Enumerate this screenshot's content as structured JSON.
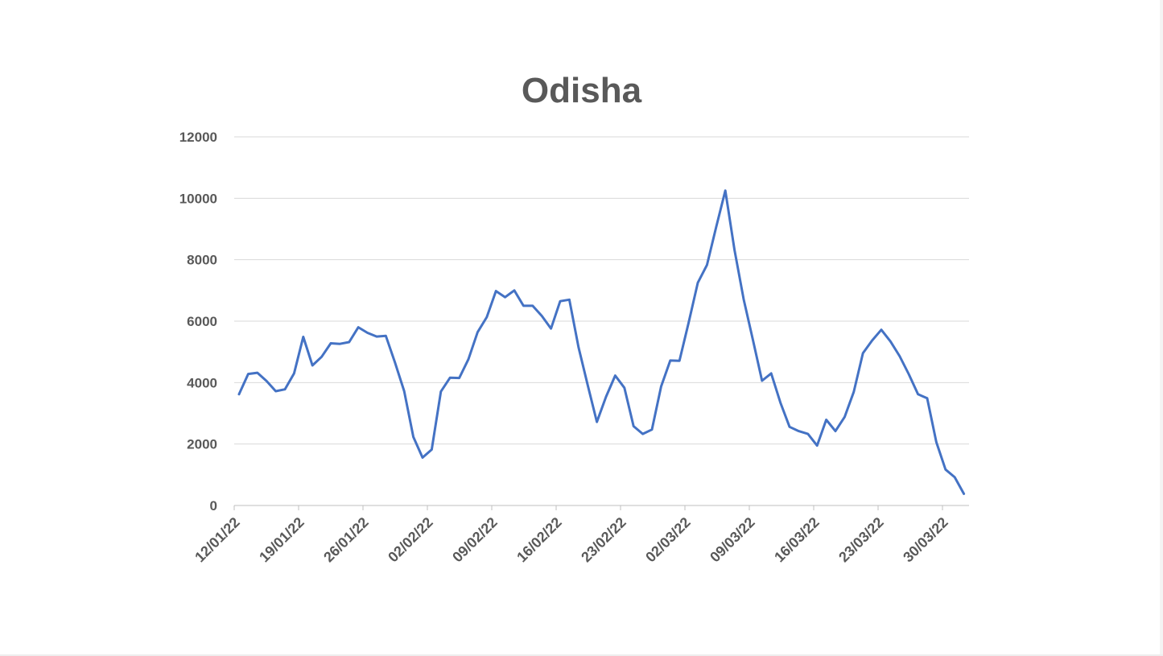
{
  "chart_data": {
    "type": "line",
    "title": "Odisha",
    "xlabel": "",
    "ylabel": "",
    "ylim": [
      0,
      12000
    ],
    "yticks": [
      0,
      2000,
      4000,
      6000,
      8000,
      10000,
      12000
    ],
    "xtick_labels": [
      "12/01/22",
      "19/01/22",
      "26/01/22",
      "02/02/22",
      "09/02/22",
      "16/02/22",
      "23/02/22",
      "02/03/22",
      "09/03/22",
      "16/03/22",
      "23/03/22",
      "30/03/22"
    ],
    "x_start": "12/01/22",
    "x_end": "01/04/22",
    "grid": true,
    "legend": "none",
    "colors": {
      "line": "#4472c4",
      "grid": "#d9d9d9",
      "text": "#595959"
    },
    "series": [
      {
        "values": [
          3620,
          4280,
          4320,
          4050,
          3720,
          3780,
          4300,
          5490,
          4560,
          4840,
          5280,
          5260,
          5320,
          5800,
          5620,
          5500,
          5520,
          4650,
          3720,
          2230,
          1560,
          1820,
          3710,
          4160,
          4150,
          4760,
          5640,
          6130,
          6980,
          6780,
          7000,
          6500,
          6500,
          6170,
          5760,
          6650,
          6700,
          5150,
          3920,
          2720,
          3540,
          4230,
          3830,
          2580,
          2330,
          2470,
          3870,
          4720,
          4710,
          5950,
          7250,
          7830,
          9060,
          10250,
          8320,
          6710,
          5400,
          4060,
          4300,
          3350,
          2560,
          2420,
          2330,
          1950,
          2790,
          2420,
          2880,
          3700,
          4960,
          5370,
          5720,
          5340,
          4860,
          4270,
          3620,
          3490,
          2060,
          1170,
          920,
          380
        ]
      }
    ]
  }
}
